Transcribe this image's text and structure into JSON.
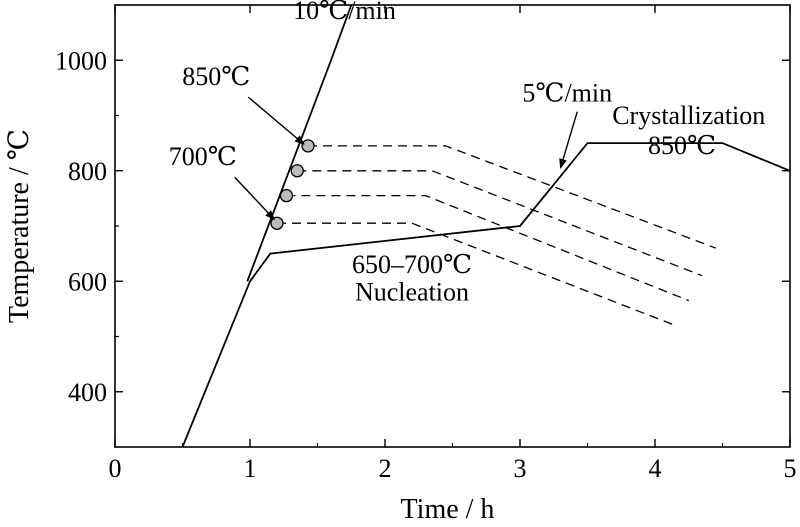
{
  "chart_data": {
    "type": "line",
    "xlabel": "Time / h",
    "ylabel": "Temperature / ℃",
    "xlim": [
      0,
      5
    ],
    "ylim": [
      300,
      1100
    ],
    "x_ticks": [
      0,
      1,
      2,
      3,
      4,
      5
    ],
    "y_ticks": [
      400,
      600,
      800,
      1000
    ],
    "grid": false,
    "series": [
      {
        "points": [
          [
            0.5,
            300
          ],
          [
            1.0,
            600
          ],
          [
            1.15,
            650
          ],
          [
            3.0,
            700
          ],
          [
            3.5,
            850
          ],
          [
            4.5,
            850
          ],
          [
            5.0,
            800
          ]
        ]
      },
      {
        "points": [
          [
            0.98,
            600
          ],
          [
            1.6,
            1000
          ],
          [
            1.75,
            1100
          ]
        ]
      }
    ],
    "dashed_series": [
      {
        "points": [
          [
            1.43,
            845
          ],
          [
            2.45,
            845
          ],
          [
            4.45,
            660
          ]
        ]
      },
      {
        "points": [
          [
            1.35,
            800
          ],
          [
            2.35,
            800
          ],
          [
            4.35,
            610
          ]
        ]
      },
      {
        "points": [
          [
            1.27,
            755
          ],
          [
            2.3,
            755
          ],
          [
            4.25,
            565
          ]
        ]
      },
      {
        "points": [
          [
            1.2,
            705
          ],
          [
            2.2,
            705
          ],
          [
            4.15,
            520
          ]
        ]
      }
    ],
    "markers": [
      {
        "x": 1.43,
        "y": 845
      },
      {
        "x": 1.35,
        "y": 800
      },
      {
        "x": 1.27,
        "y": 755
      },
      {
        "x": 1.2,
        "y": 705
      }
    ],
    "annotations": [
      {
        "text": "10℃/min",
        "x": 1.7,
        "y": 1075
      },
      {
        "text": "850℃",
        "x": 0.75,
        "y": 955,
        "arrow_to": [
          1.4,
          848
        ]
      },
      {
        "text": "700℃",
        "x": 0.65,
        "y": 810,
        "arrow_to": [
          1.18,
          712
        ]
      },
      {
        "text": "5℃/min",
        "x": 3.35,
        "y": 925,
        "arrow_to": [
          3.3,
          805
        ]
      },
      {
        "text": "Crystallization",
        "x": 4.25,
        "y": 885
      },
      {
        "text": "850℃",
        "x": 4.2,
        "y": 830
      },
      {
        "text": "650–700℃",
        "x": 2.2,
        "y": 615
      },
      {
        "text": "Nucleation",
        "x": 2.2,
        "y": 565
      }
    ]
  }
}
